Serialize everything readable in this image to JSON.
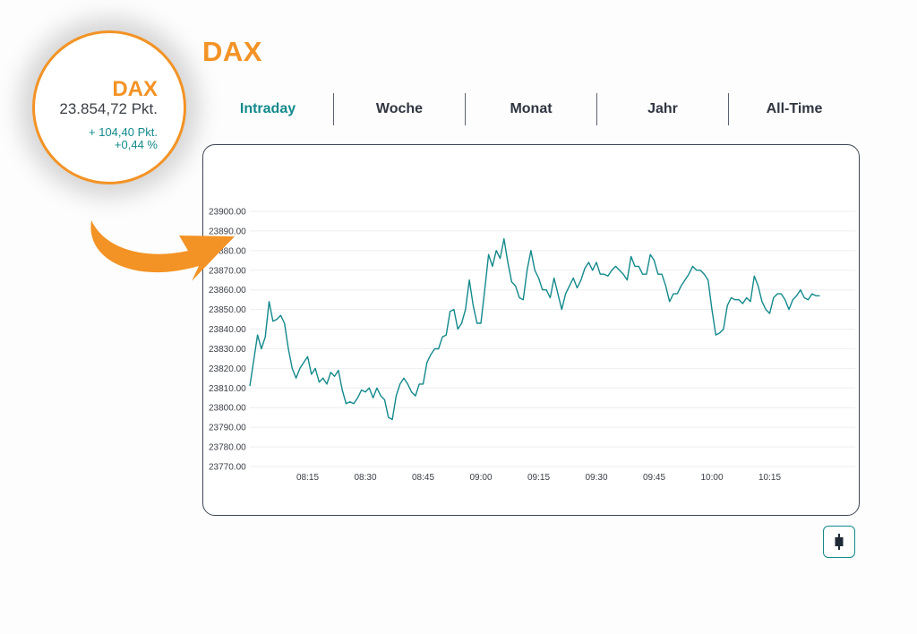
{
  "header": {
    "title": "DAX"
  },
  "tabs": [
    {
      "label": "Intraday",
      "active": true
    },
    {
      "label": "Woche",
      "active": false
    },
    {
      "label": "Monat",
      "active": false
    },
    {
      "label": "Jahr",
      "active": false
    },
    {
      "label": "All-Time",
      "active": false
    }
  ],
  "badge": {
    "name": "DAX",
    "price": "23.854,72 Pkt.",
    "change_points": "+ 104,40 Pkt.",
    "change_percent": "+0,44 %"
  },
  "colors": {
    "accent": "#f39325",
    "line": "#13898b",
    "text": "#2f3540"
  },
  "icons": {
    "expand": "candlestick-icon",
    "arrow": "curved-arrow-icon"
  },
  "chart_data": {
    "type": "line",
    "title": "",
    "xlabel": "",
    "ylabel": "",
    "x_ticks": [
      "08:15",
      "08:30",
      "08:45",
      "09:00",
      "09:15",
      "09:30",
      "09:45",
      "10:00",
      "10:15"
    ],
    "y_ticks": [
      "23900.00",
      "23890.00",
      "23880.00",
      "23870.00",
      "23860.00",
      "23850.00",
      "23840.00",
      "23830.00",
      "23820.00",
      "23810.00",
      "23800.00",
      "23790.00",
      "23780.00",
      "23770.00"
    ],
    "ylim": [
      23770,
      23900
    ],
    "x_range_minutes": [
      "08:00",
      "10:28"
    ],
    "grid": true,
    "series": [
      {
        "x": [
          "08:00",
          "08:01",
          "08:02",
          "08:03",
          "08:04",
          "08:05",
          "08:06",
          "08:07",
          "08:08",
          "08:09",
          "08:10",
          "08:11",
          "08:12",
          "08:13",
          "08:14",
          "08:15",
          "08:16",
          "08:17",
          "08:18",
          "08:19",
          "08:20",
          "08:21",
          "08:22",
          "08:23",
          "08:24",
          "08:25",
          "08:26",
          "08:27",
          "08:28",
          "08:29",
          "08:30",
          "08:31",
          "08:32",
          "08:33",
          "08:34",
          "08:35",
          "08:36",
          "08:37",
          "08:38",
          "08:39",
          "08:40",
          "08:41",
          "08:42",
          "08:43",
          "08:44",
          "08:45",
          "08:46",
          "08:47",
          "08:48",
          "08:49",
          "08:50",
          "08:51",
          "08:52",
          "08:53",
          "08:54",
          "08:55",
          "08:56",
          "08:57",
          "08:58",
          "08:59",
          "09:00",
          "09:01",
          "09:02",
          "09:03",
          "09:04",
          "09:05",
          "09:06",
          "09:07",
          "09:08",
          "09:09",
          "09:10",
          "09:11",
          "09:12",
          "09:13",
          "09:14",
          "09:15",
          "09:16",
          "09:17",
          "09:18",
          "09:19",
          "09:20",
          "09:21",
          "09:22",
          "09:23",
          "09:24",
          "09:25",
          "09:26",
          "09:27",
          "09:28",
          "09:29",
          "09:30",
          "09:31",
          "09:32",
          "09:33",
          "09:34",
          "09:35",
          "09:36",
          "09:37",
          "09:38",
          "09:39",
          "09:40",
          "09:41",
          "09:42",
          "09:43",
          "09:44",
          "09:45",
          "09:46",
          "09:47",
          "09:48",
          "09:49",
          "09:50",
          "09:51",
          "09:52",
          "09:53",
          "09:54",
          "09:55",
          "09:56",
          "09:57",
          "09:58",
          "09:59",
          "10:00",
          "10:01",
          "10:02",
          "10:03",
          "10:04",
          "10:05",
          "10:06",
          "10:07",
          "10:08",
          "10:09",
          "10:10",
          "10:11",
          "10:12",
          "10:13",
          "10:14",
          "10:15",
          "10:16",
          "10:17",
          "10:18",
          "10:19",
          "10:20",
          "10:21",
          "10:22",
          "10:23",
          "10:24",
          "10:25",
          "10:26",
          "10:27",
          "10:28"
        ],
        "y": [
          23811,
          23824,
          23837,
          23830,
          23836,
          23854,
          23844,
          23845,
          23847,
          23843,
          23830,
          23820,
          23815,
          23820,
          23823,
          23826,
          23817,
          23820,
          23813,
          23815,
          23812,
          23818,
          23816,
          23819,
          23809,
          23802,
          23803,
          23802,
          23805,
          23809,
          23808,
          23810,
          23805,
          23810,
          23806,
          23804,
          23795,
          23794,
          23806,
          23812,
          23815,
          23812,
          23808,
          23806,
          23812,
          23812,
          23823,
          23827,
          23830,
          23830,
          23836,
          23837,
          23849,
          23850,
          23840,
          23843,
          23850,
          23865,
          23852,
          23843,
          23843,
          23860,
          23878,
          23872,
          23880,
          23876,
          23886,
          23874,
          23864,
          23862,
          23856,
          23855,
          23870,
          23880,
          23870,
          23866,
          23860,
          23860,
          23856,
          23866,
          23858,
          23850,
          23858,
          23862,
          23866,
          23861,
          23865,
          23871,
          23874,
          23870,
          23874,
          23868,
          23868,
          23867,
          23870,
          23872,
          23870,
          23868,
          23865,
          23877,
          23872,
          23872,
          23868,
          23868,
          23878,
          23875,
          23868,
          23868,
          23862,
          23854,
          23858,
          23858,
          23862,
          23865,
          23868,
          23872,
          23870,
          23870,
          23868,
          23865,
          23850,
          23837,
          23838,
          23840,
          23852,
          23856,
          23855,
          23855,
          23853,
          23856,
          23854,
          23867,
          23862,
          23854,
          23850,
          23848,
          23856,
          23858,
          23858,
          23855,
          23850,
          23855,
          23857,
          23860,
          23856,
          23855,
          23858,
          23857,
          23857
        ]
      }
    ]
  }
}
